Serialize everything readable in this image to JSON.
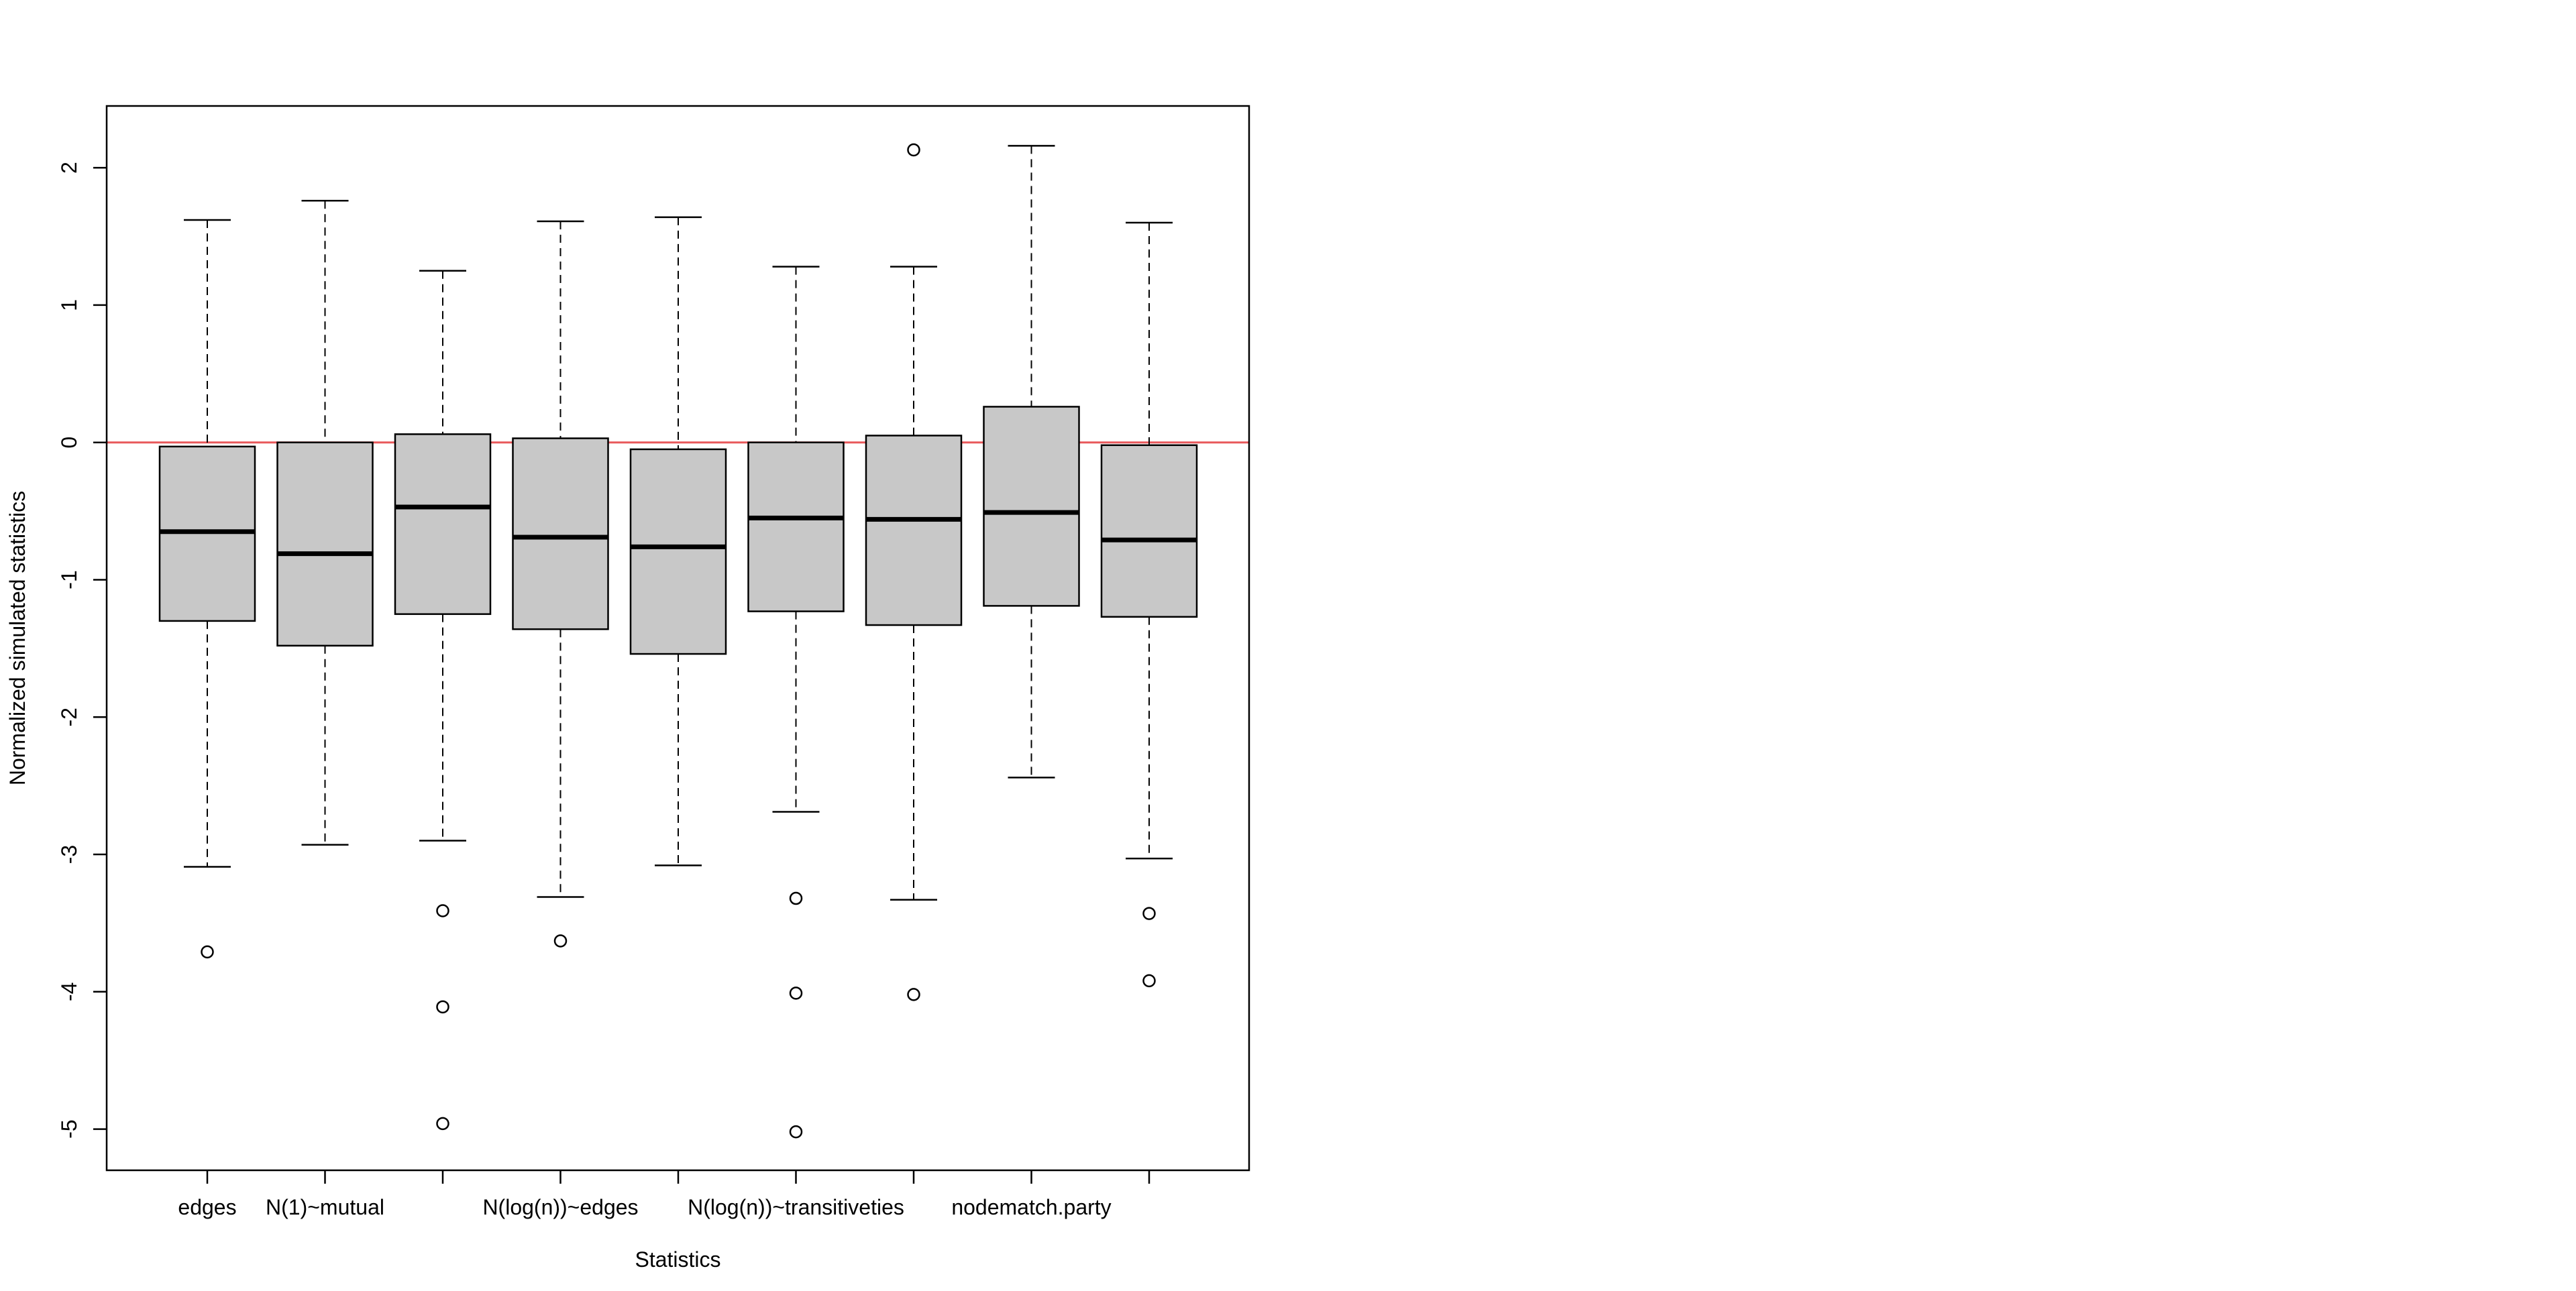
{
  "chart_data": {
    "type": "box",
    "xlabel": "Statistics",
    "ylabel": "Normalized simulated statistics",
    "ylim": [
      -5.3,
      2.45
    ],
    "yticks": [
      -5,
      -4,
      -3,
      -2,
      -1,
      0,
      1,
      2
    ],
    "ytick_labels": [
      "-5",
      "-4",
      "-3",
      "-2",
      "-1",
      "0",
      "1",
      "2"
    ],
    "reference_line": {
      "y": 0,
      "color": "#e8595b"
    },
    "box_fill": "#c8c8c8",
    "grid": false,
    "categories": [
      {
        "label": "edges",
        "whisker_low": -3.09,
        "q1": -1.3,
        "median": -0.65,
        "q3": -0.03,
        "whisker_high": 1.62,
        "outliers": [
          -3.71
        ]
      },
      {
        "label": "N(1)~mutual",
        "whisker_low": -2.93,
        "q1": -1.48,
        "median": -0.81,
        "q3": 0.0,
        "whisker_high": 1.76,
        "outliers": []
      },
      {
        "label": "",
        "whisker_low": -2.9,
        "q1": -1.25,
        "median": -0.47,
        "q3": 0.06,
        "whisker_high": 1.25,
        "outliers": [
          -3.41,
          -4.11,
          -4.96
        ]
      },
      {
        "label": "N(log(n))~edges",
        "whisker_low": -3.31,
        "q1": -1.36,
        "median": -0.69,
        "q3": 0.03,
        "whisker_high": 1.61,
        "outliers": [
          -3.63
        ]
      },
      {
        "label": "",
        "whisker_low": -3.08,
        "q1": -1.54,
        "median": -0.76,
        "q3": -0.05,
        "whisker_high": 1.64,
        "outliers": []
      },
      {
        "label": "N(log(n))~transitiveties",
        "whisker_low": -2.69,
        "q1": -1.23,
        "median": -0.55,
        "q3": 0.0,
        "whisker_high": 1.28,
        "outliers": [
          -3.32,
          -4.01,
          -5.02
        ]
      },
      {
        "label": "",
        "whisker_low": -3.33,
        "q1": -1.33,
        "median": -0.56,
        "q3": 0.05,
        "whisker_high": 1.28,
        "outliers": [
          2.13,
          -4.02
        ]
      },
      {
        "label": "nodematch.party",
        "whisker_low": -2.44,
        "q1": -1.19,
        "median": -0.51,
        "q3": 0.26,
        "whisker_high": 2.16,
        "outliers": []
      },
      {
        "label": "",
        "whisker_low": -3.03,
        "q1": -1.27,
        "median": -0.71,
        "q3": -0.02,
        "whisker_high": 1.6,
        "outliers": [
          -3.43,
          -3.92
        ]
      }
    ]
  }
}
